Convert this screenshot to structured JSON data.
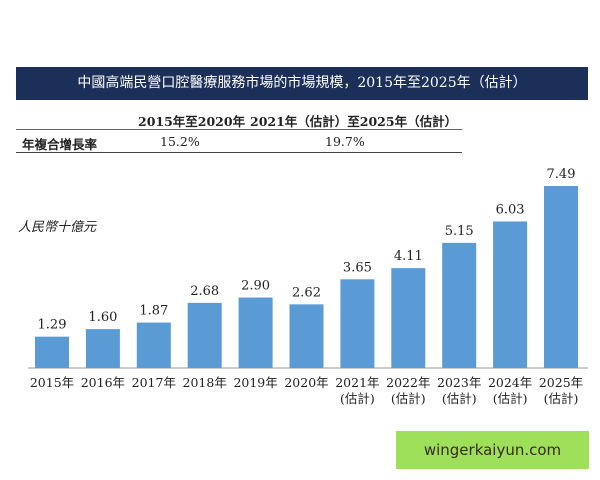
{
  "chart_data": {
    "type": "bar",
    "title": "中國高端民營口腔醫療服務市場的市場規模，2015年至2025年（估計）",
    "ylabel": "人民幣十億元",
    "xlabel": "",
    "categories": [
      "2015年",
      "2016年",
      "2017年",
      "2018年",
      "2019年",
      "2020年",
      "2021年\n(估計)",
      "2022年\n(估計)",
      "2023年\n(估計)",
      "2024年\n(估計)",
      "2025年\n(估計)"
    ],
    "category_lines": [
      [
        "2015年"
      ],
      [
        "2016年"
      ],
      [
        "2017年"
      ],
      [
        "2018年"
      ],
      [
        "2019年"
      ],
      [
        "2020年"
      ],
      [
        "2021年",
        "(估計)"
      ],
      [
        "2022年",
        "(估計)"
      ],
      [
        "2023年",
        "(估計)"
      ],
      [
        "2024年",
        "(估計)"
      ],
      [
        "2025年",
        "(估計)"
      ]
    ],
    "values": [
      1.29,
      1.6,
      1.87,
      2.68,
      2.9,
      2.62,
      3.65,
      4.11,
      5.15,
      6.03,
      7.49
    ],
    "value_labels": [
      "1.29",
      "1.60",
      "1.87",
      "2.68",
      "2.90",
      "2.62",
      "3.65",
      "4.11",
      "5.15",
      "6.03",
      "7.49"
    ],
    "ylim": [
      0,
      7.5
    ],
    "grid": false,
    "bar_color": "#5b9bd5"
  },
  "cagr_table": {
    "col1": "2015年至2020年",
    "col2": "2021年（估計）至2025年（估計）",
    "row_label": "年複合增長率",
    "val1": "15.2%",
    "val2": "19.7%"
  },
  "watermark": "wingerkaiyun.com"
}
